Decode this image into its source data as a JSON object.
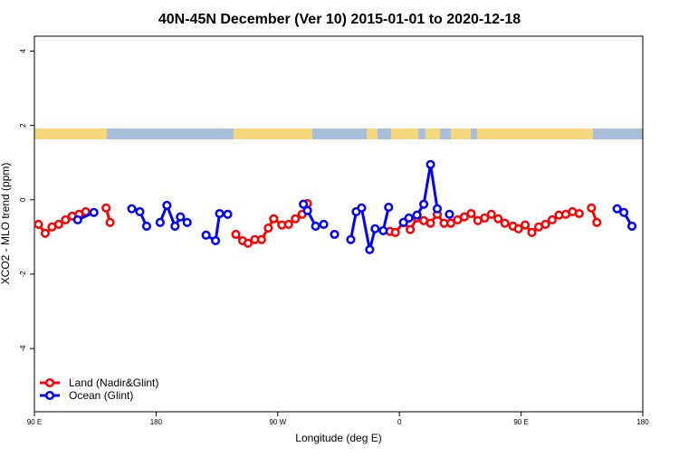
{
  "chart_data": {
    "type": "line",
    "title": "40N-45N December (Ver 10)   2015-01-01 to 2020-12-18",
    "x_label": "Longitude (deg E)",
    "y_label": "XCO2 - MLO trend (ppm)",
    "xlim": [
      -270,
      180
    ],
    "ylim": [
      -5.7,
      4.4
    ],
    "xticks": [
      {
        "value": -270,
        "label": "90 E"
      },
      {
        "value": -180,
        "label": "180"
      },
      {
        "value": -90,
        "label": "90 W"
      },
      0,
      {
        "value": 90,
        "label": "90 E"
      },
      180
    ],
    "yticks": [
      -4,
      -2,
      0,
      2,
      4
    ],
    "legend": "bottom-left",
    "series": [
      {
        "name": "Land (Nadir&Glint)",
        "color": "#ff0000",
        "x": [
          -267,
          -262,
          -257,
          -252,
          -247,
          -242,
          -237,
          -232,
          null,
          -217,
          -214,
          null,
          -121,
          -116,
          -112,
          -107,
          -102,
          -97,
          -93,
          -87,
          -82,
          -77,
          -72,
          -68,
          null,
          -7,
          -3,
          3,
          8,
          13,
          18,
          23,
          28,
          33,
          38,
          43,
          48,
          53,
          58,
          63,
          68,
          73,
          78,
          84,
          88,
          93,
          98,
          103,
          108,
          113,
          118,
          123,
          128,
          133,
          null,
          142,
          146
        ],
        "values": [
          -0.66,
          -0.9,
          -0.73,
          -0.66,
          -0.54,
          -0.44,
          -0.39,
          -0.32,
          null,
          -0.22,
          -0.61,
          null,
          -0.93,
          -1.1,
          -1.17,
          -1.07,
          -1.07,
          -0.76,
          -0.51,
          -0.68,
          -0.66,
          -0.51,
          -0.39,
          -0.1,
          null,
          -0.85,
          -0.88,
          -0.61,
          -0.8,
          -0.49,
          -0.56,
          -0.63,
          -0.39,
          -0.63,
          -0.63,
          -0.54,
          -0.46,
          -0.37,
          -0.56,
          -0.49,
          -0.39,
          -0.51,
          -0.63,
          -0.71,
          -0.78,
          -0.68,
          -0.88,
          -0.73,
          -0.66,
          -0.54,
          -0.41,
          -0.39,
          -0.32,
          -0.37,
          null,
          -0.22,
          -0.61
        ]
      },
      {
        "name": "Ocean (Glint)",
        "color": "#0000ff",
        "x": [
          -238,
          -226,
          null,
          -198,
          -192,
          -187,
          null,
          -177,
          -172,
          -166,
          -162,
          -157,
          null,
          -143,
          -136,
          -133,
          -127,
          null,
          -71,
          -68,
          -62,
          -56,
          null,
          -48,
          null,
          -36,
          -32,
          -28,
          -22,
          -18,
          -12,
          -8,
          null,
          3,
          7,
          13,
          18,
          23,
          28,
          null,
          37,
          null,
          161,
          166,
          172
        ],
        "values": [
          -0.54,
          -0.34,
          null,
          -0.24,
          -0.32,
          -0.71,
          null,
          -0.61,
          -0.15,
          -0.71,
          -0.46,
          -0.61,
          null,
          -0.95,
          -1.1,
          -0.37,
          -0.39,
          null,
          -0.12,
          -0.29,
          -0.71,
          -0.66,
          null,
          -0.93,
          null,
          -1.07,
          -0.32,
          -0.22,
          -1.34,
          -0.78,
          -0.83,
          -0.2,
          null,
          -0.61,
          -0.49,
          -0.41,
          -0.12,
          0.95,
          -0.24,
          null,
          -0.39,
          null,
          -0.24,
          -0.34,
          -0.71
        ]
      }
    ]
  }
}
